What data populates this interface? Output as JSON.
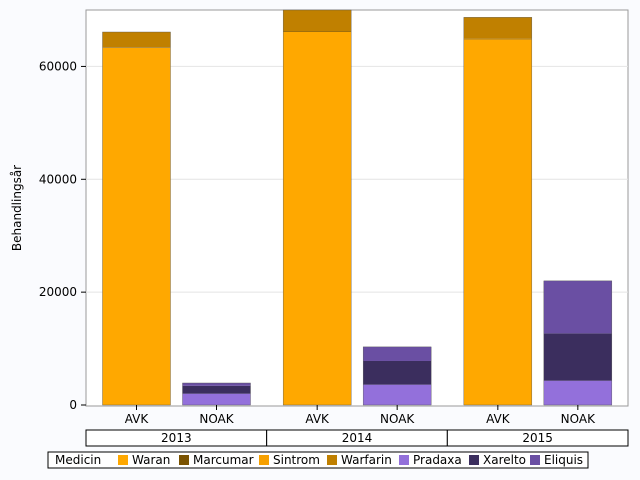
{
  "chart_data": {
    "type": "bar",
    "stacked": true,
    "ylabel": "Behandlingsår",
    "ylim": [
      0,
      70000
    ],
    "yticks": [
      0,
      20000,
      40000,
      60000
    ],
    "ytick_labels": [
      "0",
      "20000",
      "40000",
      "60000"
    ],
    "grid": "horizontal",
    "groups": [
      "2013",
      "2014",
      "2015"
    ],
    "categories": [
      "AVK",
      "NOAK"
    ],
    "legend_title": "Medicin",
    "legend_position": "bottom",
    "series": [
      {
        "name": "Waran",
        "color": "#ffa800",
        "values": [
          [
            63300,
            0
          ],
          [
            66100,
            0
          ],
          [
            64800,
            0
          ]
        ]
      },
      {
        "name": "Marcumar",
        "color": "#7a5200",
        "values": [
          [
            100,
            0
          ],
          [
            100,
            0
          ],
          [
            100,
            0
          ]
        ]
      },
      {
        "name": "Sintrom",
        "color": "#f7a000",
        "values": [
          [
            0,
            0
          ],
          [
            0,
            0
          ],
          [
            0,
            0
          ]
        ]
      },
      {
        "name": "Warfarin",
        "color": "#c08000",
        "values": [
          [
            2700,
            0
          ],
          [
            3800,
            0
          ],
          [
            3800,
            0
          ]
        ]
      },
      {
        "name": "Pradaxa",
        "color": "#9370db",
        "values": [
          [
            0,
            2000
          ],
          [
            0,
            3600
          ],
          [
            0,
            4300
          ]
        ]
      },
      {
        "name": "Xarelto",
        "color": "#3b2e5e",
        "values": [
          [
            0,
            1400
          ],
          [
            0,
            4200
          ],
          [
            0,
            8400
          ]
        ]
      },
      {
        "name": "Eliquis",
        "color": "#6a4fa3",
        "values": [
          [
            0,
            500
          ],
          [
            0,
            2500
          ],
          [
            0,
            9300
          ]
        ]
      }
    ]
  }
}
